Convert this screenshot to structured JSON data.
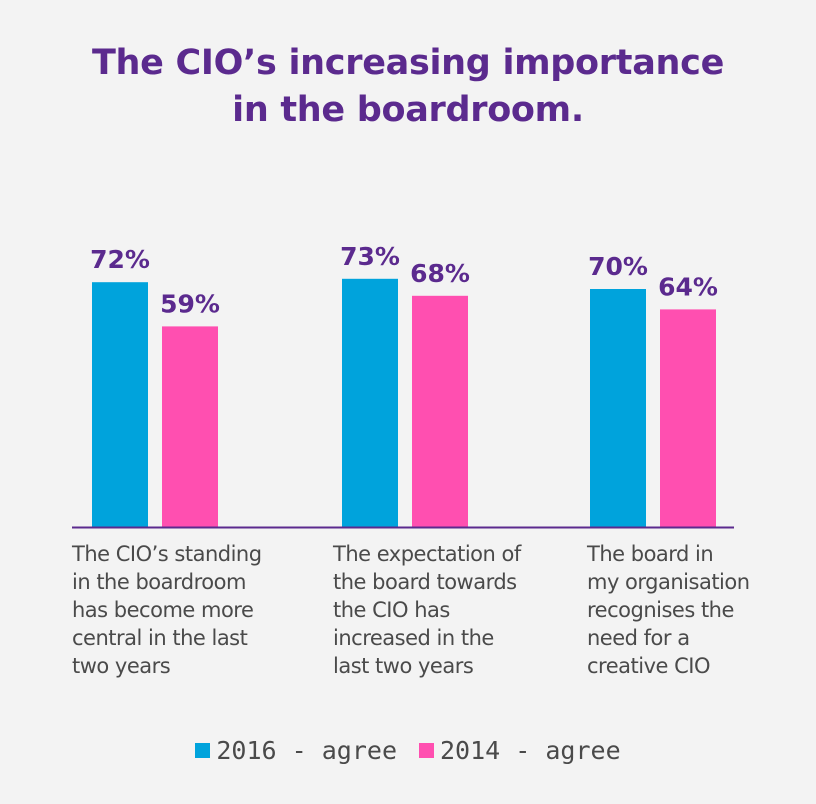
{
  "title_lines": [
    "The CIO’s increasing importance",
    "in the boardroom."
  ],
  "colors": {
    "series_2016": "#00a3dc",
    "series_2014": "#ff4fb0",
    "label": "#5b2a8e",
    "axis": "#5b2a8e"
  },
  "chart_data": {
    "type": "bar",
    "title": "The CIO’s increasing importance in the boardroom.",
    "categories": [
      "The CIO’s standing in the boardroom has become more central in the last two years",
      "The expectation of the board towards the CIO has increased in the last two years",
      "The board in my organisation recognises the need for a creative CIO"
    ],
    "category_label_lines": [
      [
        "The CIO’s standing",
        "in the boardroom",
        "has become more",
        "central in the last",
        "two years"
      ],
      [
        "The expectation of",
        "the board towards",
        "the CIO has",
        "increased in the",
        "last two years"
      ],
      [
        "The board in",
        "my organisation",
        "recognises the",
        "need for a",
        "creative CIO"
      ]
    ],
    "series": [
      {
        "name": "2016 - agree",
        "values": [
          72,
          73,
          70
        ],
        "labels": [
          "72%",
          "73%",
          "70%"
        ]
      },
      {
        "name": "2014 - agree",
        "values": [
          59,
          68,
          64
        ],
        "labels": [
          "59%",
          "68%",
          "64%"
        ]
      }
    ],
    "ylim": [
      0,
      100
    ],
    "xlabel": "",
    "ylabel": "",
    "legend_position": "bottom-center"
  }
}
